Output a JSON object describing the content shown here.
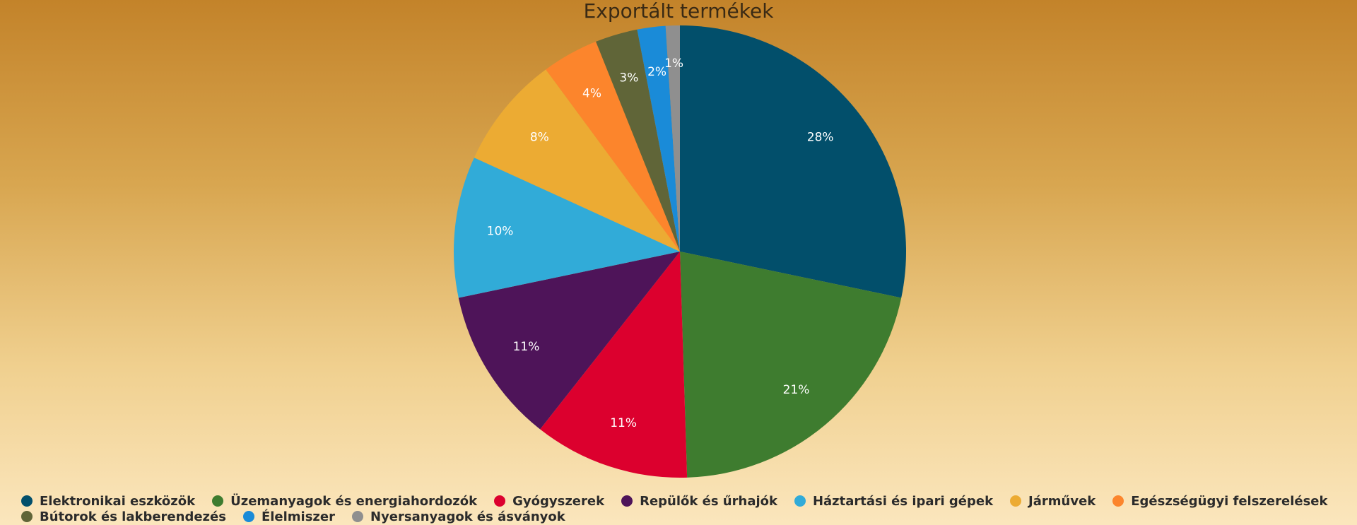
{
  "chart_data": {
    "type": "pie",
    "title": "Exportált termékek",
    "legend_position": "bottom",
    "slices": [
      {
        "label": "Elektronikai eszközök",
        "value": 28,
        "display": "28%",
        "color": "#024f6b"
      },
      {
        "label": "Üzemanyagok és energiahordozók",
        "value": 21,
        "display": "21%",
        "color": "#3e7c2f"
      },
      {
        "label": "Gyógyszerek",
        "value": 11,
        "display": "11%",
        "color": "#dc002e"
      },
      {
        "label": "Repülők és űrhajók",
        "value": 11,
        "display": "11%",
        "color": "#4e1459"
      },
      {
        "label": "Háztartási és ipari gépek",
        "value": 10,
        "display": "10%",
        "color": "#31abd8"
      },
      {
        "label": "Járművek",
        "value": 8,
        "display": "8%",
        "color": "#ecab33"
      },
      {
        "label": "Egészségügyi felszerelések",
        "value": 4,
        "display": "4%",
        "color": "#fc852c"
      },
      {
        "label": "Bútorok és lakberendezés",
        "value": 3,
        "display": "3%",
        "color": "#606538"
      },
      {
        "label": "Élelmiszer",
        "value": 2,
        "display": "2%",
        "color": "#1a8bd8"
      },
      {
        "label": "Nyersanyagok és ásványok",
        "value": 1,
        "display": "1%",
        "color": "#8f8f8f"
      }
    ]
  }
}
